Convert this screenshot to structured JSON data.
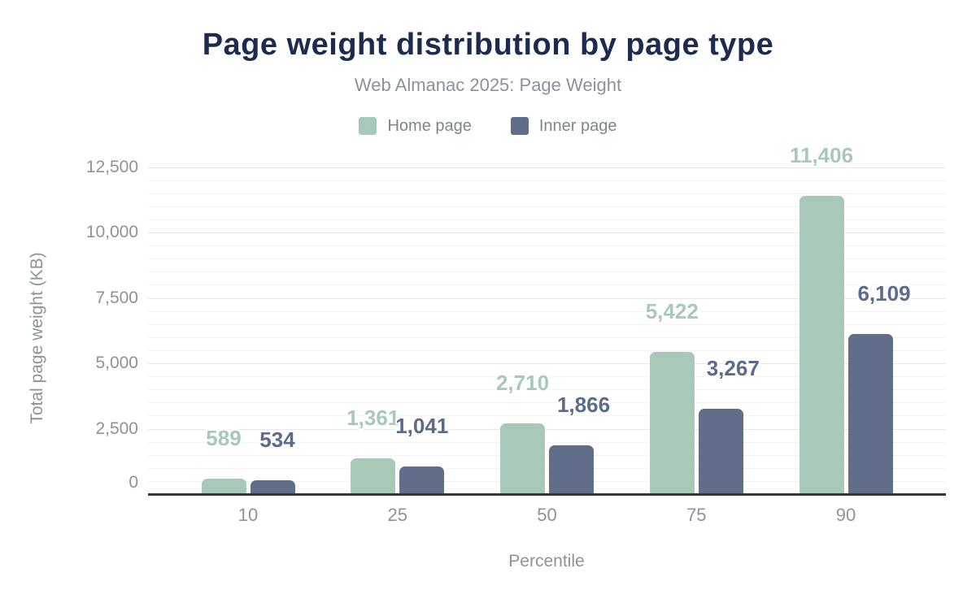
{
  "chart_data": {
    "type": "bar",
    "title": "Page weight distribution by page type",
    "subtitle": "Web Almanac 2025: Page Weight",
    "xlabel": "Percentile",
    "ylabel": "Total page weight (KB)",
    "categories": [
      "10",
      "25",
      "50",
      "75",
      "90"
    ],
    "series": [
      {
        "name": "Home page",
        "color": "#a8c9b8",
        "label_color": "#a8c9b8",
        "values": [
          589,
          1361,
          2710,
          5422,
          11406
        ],
        "labels": [
          "589",
          "1,361",
          "2,710",
          "5,422",
          "11,406"
        ]
      },
      {
        "name": "Inner page",
        "color": "#606e8a",
        "label_color": "#5a6b8b",
        "values": [
          534,
          1041,
          1866,
          3267,
          6109
        ],
        "labels": [
          "534",
          "1,041",
          "1,866",
          "3,267",
          "6,109"
        ]
      }
    ],
    "ylim": [
      0,
      12500
    ],
    "y_ticks": [
      0,
      2500,
      5000,
      7500,
      10000,
      12500
    ],
    "y_tick_labels": [
      "0",
      "2,500",
      "5,000",
      "7,500",
      "10,000",
      "12,500"
    ],
    "minor_tick_step": 500,
    "grid": "on",
    "legend_position": "top"
  },
  "colors": {
    "title": "#1c2b4e",
    "axis_line": "#343538",
    "tick_text": "#8d929c"
  }
}
